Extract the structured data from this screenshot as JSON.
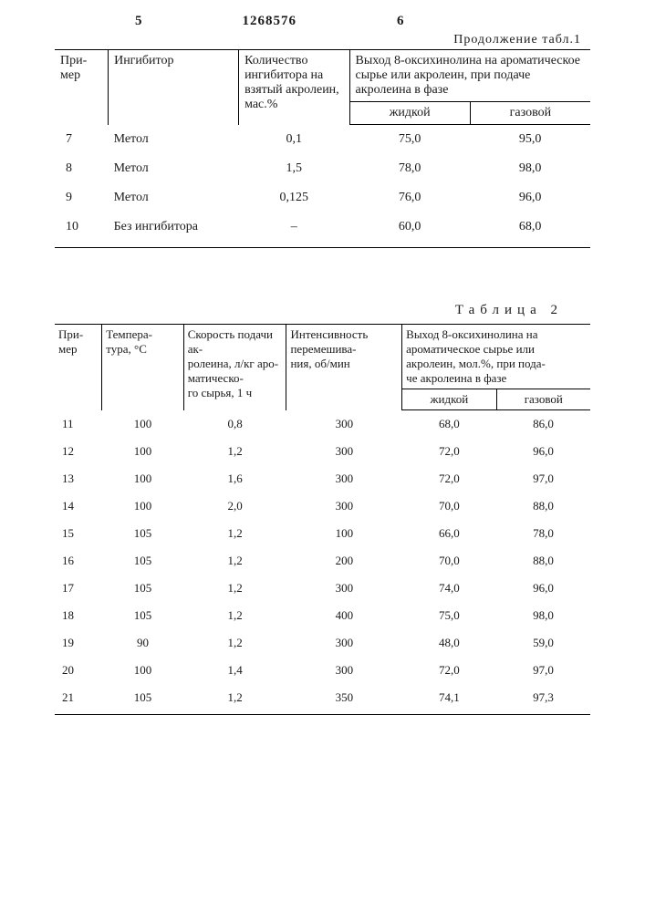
{
  "header": {
    "left_num": "5",
    "patent_num": "1268576",
    "right_num": "6",
    "continuation": "Продолжение табл.1"
  },
  "table1": {
    "columns": {
      "c1": "При-\nмер",
      "c2": "Ингибитор",
      "c3": "Количество ингибитора на взятый акролеин, мас.%",
      "c4_top": "Выход 8-оксихинолина на ароматическое сырье или акролеин, при подаче акролеина в фазе",
      "c4_liq": "жидкой",
      "c4_gas": "газовой"
    },
    "rows": [
      {
        "n": "7",
        "inh": "Метол",
        "qty": "0,1",
        "liq": "75,0",
        "gas": "95,0"
      },
      {
        "n": "8",
        "inh": "Метол",
        "qty": "1,5",
        "liq": "78,0",
        "gas": "98,0"
      },
      {
        "n": "9",
        "inh": "Метол",
        "qty": "0,125",
        "liq": "76,0",
        "gas": "96,0"
      },
      {
        "n": "10",
        "inh": "Без ингибитора",
        "qty": "–",
        "liq": "60,0",
        "gas": "68,0"
      }
    ]
  },
  "table2": {
    "title": "Таблица 2",
    "columns": {
      "c1": "При-\nмер",
      "c2": "Темпера-\nтура, °С",
      "c3": "Скорость подачи ак-\nролеина, л/кг аро-\nматическо-\nго сырья, 1 ч",
      "c4": "Интенсивность перемешива-\nния, об/мин",
      "c5_top": "Выход 8-оксихинолина на ароматическое сырье или акролеин, мол.%, при пода-\nче акролеина в фазе",
      "c5_liq": "жидкой",
      "c5_gas": "газовой"
    },
    "rows": [
      {
        "n": "11",
        "t": "100",
        "s": "0,8",
        "i": "300",
        "liq": "68,0",
        "gas": "86,0"
      },
      {
        "n": "12",
        "t": "100",
        "s": "1,2",
        "i": "300",
        "liq": "72,0",
        "gas": "96,0"
      },
      {
        "n": "13",
        "t": "100",
        "s": "1,6",
        "i": "300",
        "liq": "72,0",
        "gas": "97,0"
      },
      {
        "n": "14",
        "t": "100",
        "s": "2,0",
        "i": "300",
        "liq": "70,0",
        "gas": "88,0"
      },
      {
        "n": "15",
        "t": "105",
        "s": "1,2",
        "i": "100",
        "liq": "66,0",
        "gas": "78,0"
      },
      {
        "n": "16",
        "t": "105",
        "s": "1,2",
        "i": "200",
        "liq": "70,0",
        "gas": "88,0"
      },
      {
        "n": "17",
        "t": "105",
        "s": "1,2",
        "i": "300",
        "liq": "74,0",
        "gas": "96,0"
      },
      {
        "n": "18",
        "t": "105",
        "s": "1,2",
        "i": "400",
        "liq": "75,0",
        "gas": "98,0"
      },
      {
        "n": "19",
        "t": "90",
        "s": "1,2",
        "i": "300",
        "liq": "48,0",
        "gas": "59,0"
      },
      {
        "n": "20",
        "t": "100",
        "s": "1,4",
        "i": "300",
        "liq": "72,0",
        "gas": "97,0"
      },
      {
        "n": "21",
        "t": "105",
        "s": "1,2",
        "i": "350",
        "liq": "74,1",
        "gas": "97,3"
      }
    ]
  }
}
